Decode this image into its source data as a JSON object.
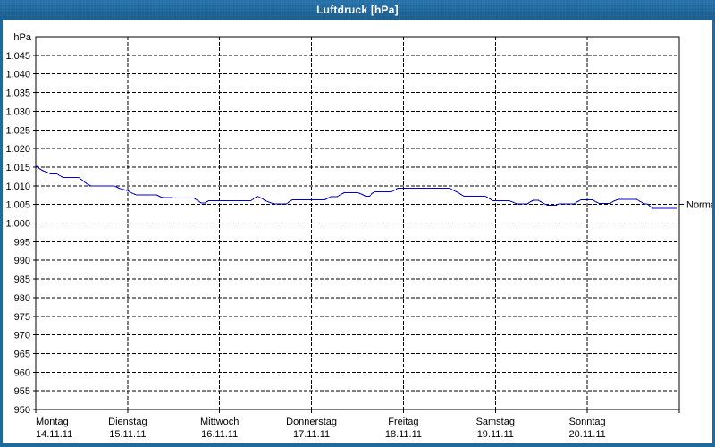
{
  "window": {
    "title": "Luftdruck [hPa]",
    "colors": {
      "frame": "#1e6a9c",
      "titlebar_top": "#2b7ab2",
      "titlebar_bottom": "#1d6494",
      "title_text": "#ffffff"
    }
  },
  "chart_data": {
    "type": "line",
    "title": "Luftdruck [hPa]",
    "unit_label": "hPa",
    "ylim": [
      950,
      1050
    ],
    "xlim_days": [
      0,
      7
    ],
    "grid": "dashed",
    "colors": {
      "line": "#0000cc",
      "grid": "#000000",
      "text": "#000000",
      "plot_bg": "#ffffff"
    },
    "yticks": [
      {
        "value": 1045,
        "label": "1.045"
      },
      {
        "value": 1040,
        "label": "1.040"
      },
      {
        "value": 1035,
        "label": "1.035"
      },
      {
        "value": 1030,
        "label": "1.030"
      },
      {
        "value": 1025,
        "label": "1.025"
      },
      {
        "value": 1020,
        "label": "1.020"
      },
      {
        "value": 1015,
        "label": "1.015"
      },
      {
        "value": 1010,
        "label": "1.010"
      },
      {
        "value": 1005,
        "label": "1.005"
      },
      {
        "value": 1000,
        "label": "1.000"
      },
      {
        "value": 995,
        "label": "995"
      },
      {
        "value": 990,
        "label": "990"
      },
      {
        "value": 985,
        "label": "985"
      },
      {
        "value": 980,
        "label": "980"
      },
      {
        "value": 975,
        "label": "975"
      },
      {
        "value": 970,
        "label": "970"
      },
      {
        "value": 965,
        "label": "965"
      },
      {
        "value": 960,
        "label": "960"
      },
      {
        "value": 955,
        "label": "955"
      },
      {
        "value": 950,
        "label": "950"
      }
    ],
    "days": [
      {
        "label": "Montag",
        "date": "14.11.11"
      },
      {
        "label": "Dienstag",
        "date": "15.11.11"
      },
      {
        "label": "Mittwoch",
        "date": "16.11.11"
      },
      {
        "label": "Donnerstag",
        "date": "17.11.11"
      },
      {
        "label": "Freitag",
        "date": "18.11.11"
      },
      {
        "label": "Samstag",
        "date": "19.11.11"
      },
      {
        "label": "Sonntag",
        "date": "20.11.11"
      }
    ],
    "annotation": {
      "label": "Normal",
      "value": 1005
    },
    "series": [
      {
        "name": "Luftdruck",
        "points": [
          [
            0.0,
            1015.4
          ],
          [
            0.04,
            1014.6
          ],
          [
            0.08,
            1014.0
          ],
          [
            0.12,
            1013.7
          ],
          [
            0.16,
            1013.2
          ],
          [
            0.23,
            1013.2
          ],
          [
            0.27,
            1012.6
          ],
          [
            0.3,
            1012.2
          ],
          [
            0.47,
            1012.2
          ],
          [
            0.52,
            1011.2
          ],
          [
            0.57,
            1010.3
          ],
          [
            0.61,
            1009.9
          ],
          [
            0.86,
            1009.9
          ],
          [
            0.91,
            1009.3
          ],
          [
            0.97,
            1008.9
          ],
          [
            1.0,
            1008.7
          ],
          [
            1.05,
            1008.0
          ],
          [
            1.09,
            1007.6
          ],
          [
            1.31,
            1007.6
          ],
          [
            1.36,
            1007.0
          ],
          [
            1.39,
            1006.8
          ],
          [
            1.72,
            1006.7
          ],
          [
            1.77,
            1005.9
          ],
          [
            1.8,
            1005.4
          ],
          [
            1.84,
            1005.4
          ],
          [
            1.88,
            1006.0
          ],
          [
            2.34,
            1006.0
          ],
          [
            2.38,
            1006.7
          ],
          [
            2.41,
            1007.2
          ],
          [
            2.46,
            1006.6
          ],
          [
            2.5,
            1006.0
          ],
          [
            2.56,
            1005.4
          ],
          [
            2.6,
            1005.2
          ],
          [
            2.73,
            1005.2
          ],
          [
            2.76,
            1005.8
          ],
          [
            2.79,
            1006.2
          ],
          [
            3.14,
            1006.2
          ],
          [
            3.18,
            1006.7
          ],
          [
            3.21,
            1007.1
          ],
          [
            3.28,
            1007.1
          ],
          [
            3.32,
            1007.7
          ],
          [
            3.36,
            1008.2
          ],
          [
            3.5,
            1008.2
          ],
          [
            3.55,
            1007.7
          ],
          [
            3.59,
            1007.2
          ],
          [
            3.63,
            1007.2
          ],
          [
            3.66,
            1008.0
          ],
          [
            3.69,
            1008.4
          ],
          [
            3.87,
            1008.4
          ],
          [
            3.91,
            1008.9
          ],
          [
            3.94,
            1009.4
          ],
          [
            4.5,
            1009.4
          ],
          [
            4.55,
            1008.7
          ],
          [
            4.6,
            1008.1
          ],
          [
            4.63,
            1007.6
          ],
          [
            4.66,
            1007.2
          ],
          [
            4.89,
            1007.2
          ],
          [
            4.94,
            1006.5
          ],
          [
            4.97,
            1006.0
          ],
          [
            5.15,
            1006.0
          ],
          [
            5.19,
            1005.6
          ],
          [
            5.23,
            1005.2
          ],
          [
            5.35,
            1005.2
          ],
          [
            5.38,
            1005.7
          ],
          [
            5.41,
            1006.1
          ],
          [
            5.47,
            1006.1
          ],
          [
            5.5,
            1005.6
          ],
          [
            5.53,
            1005.2
          ],
          [
            5.57,
            1004.8
          ],
          [
            5.66,
            1004.8
          ],
          [
            5.69,
            1005.2
          ],
          [
            5.86,
            1005.2
          ],
          [
            5.89,
            1005.7
          ],
          [
            5.93,
            1006.2
          ],
          [
            6.06,
            1006.2
          ],
          [
            6.09,
            1005.7
          ],
          [
            6.13,
            1005.3
          ],
          [
            6.25,
            1005.3
          ],
          [
            6.28,
            1005.8
          ],
          [
            6.33,
            1006.3
          ],
          [
            6.54,
            1006.3
          ],
          [
            6.58,
            1005.7
          ],
          [
            6.62,
            1005.2
          ],
          [
            6.65,
            1005.2
          ],
          [
            6.68,
            1004.5
          ],
          [
            6.71,
            1004.0
          ],
          [
            6.97,
            1004.0
          ]
        ]
      }
    ]
  }
}
